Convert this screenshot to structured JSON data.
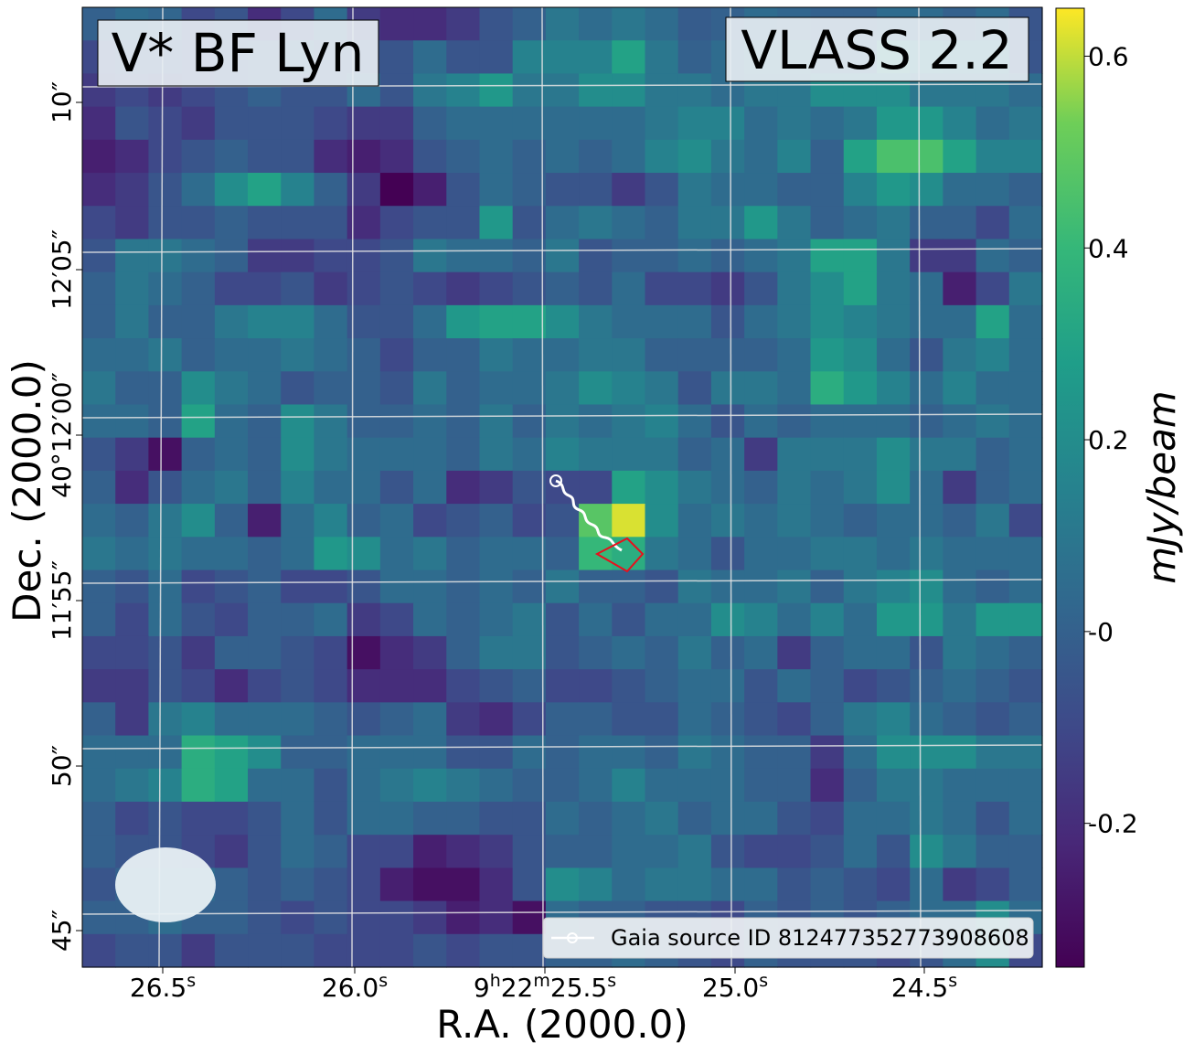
{
  "chart_data": {
    "type": "heatmap",
    "title": "V* BF Lyn",
    "survey_label": "VLASS 2.2",
    "xlabel": "R.A. (2000.0)",
    "ylabel": "Dec. (2000.0)",
    "x_ticks": [
      {
        "pre": "26.5",
        "sup": "s",
        "post": ""
      },
      {
        "pre": "26.0",
        "sup": "s",
        "post": ""
      },
      {
        "pre": "9",
        "sup": "h",
        "post": "22",
        "sup2": "m",
        "post2": "25.5",
        "sup3": "s"
      },
      {
        "pre": "25.0",
        "sup": "s",
        "post": ""
      },
      {
        "pre": "24.5",
        "sup": "s",
        "post": ""
      }
    ],
    "y_ticks": [
      "45″",
      "50″",
      "11′55″",
      "40°12′00″",
      "12′05″",
      "10″"
    ],
    "colorbar": {
      "label": "mJy/beam",
      "colormap": "viridis",
      "range": [
        -0.35,
        0.65
      ],
      "ticks": [
        "0.6",
        "0.4",
        "0.2",
        "-0",
        "-0.2"
      ],
      "tick_values": [
        0.6,
        0.4,
        0.2,
        0.0,
        -0.2
      ]
    },
    "legend": {
      "label": "Gaia source ID 812477352773908608",
      "position": "lower-right"
    },
    "grid": true,
    "pixel_values": [
      [
        0.0,
        0.05,
        0.02,
        -0.1,
        -0.05,
        -0.2,
        -0.1,
        0.05,
        -0.15,
        -0.2,
        -0.2,
        -0.15,
        -0.05,
        0.0,
        0.1,
        0.05,
        0.1,
        0.05,
        -0.02,
        0.0,
        0.05,
        0.02,
        0.0,
        0.0,
        0.05,
        0.05,
        0.0,
        0.05,
        -0.05
      ],
      [
        -0.1,
        -0.05,
        -0.05,
        -0.1,
        -0.05,
        0.0,
        0.05,
        -0.05,
        -0.05,
        -0.05,
        0.05,
        -0.05,
        -0.05,
        0.15,
        0.15,
        0.15,
        0.3,
        0.1,
        0.0,
        0.05,
        0.15,
        0.15,
        0.05,
        0.05,
        0.35,
        0.25,
        0.2,
        0.2,
        -0.05
      ],
      [
        -0.15,
        -0.1,
        -0.15,
        -0.1,
        -0.05,
        0.0,
        -0.05,
        -0.05,
        0.05,
        -0.05,
        0.1,
        0.15,
        0.25,
        0.1,
        0.1,
        0.2,
        0.2,
        0.1,
        0.1,
        0.05,
        0.1,
        0.1,
        0.2,
        0.2,
        0.2,
        0.1,
        0.1,
        0.1,
        0.05
      ],
      [
        -0.2,
        -0.05,
        -0.1,
        -0.15,
        -0.05,
        -0.05,
        -0.05,
        -0.1,
        -0.15,
        -0.15,
        0.0,
        0.05,
        0.05,
        0.05,
        0.05,
        0.05,
        0.05,
        0.1,
        0.15,
        0.15,
        0.05,
        0.1,
        0.05,
        0.1,
        0.25,
        0.25,
        0.15,
        0.05,
        0.1
      ],
      [
        -0.25,
        -0.2,
        -0.1,
        -0.05,
        0.0,
        -0.05,
        -0.05,
        -0.2,
        -0.25,
        -0.2,
        -0.05,
        0.0,
        0.05,
        0.0,
        0.05,
        0.0,
        0.05,
        0.15,
        0.2,
        0.1,
        0.05,
        0.15,
        0.0,
        0.3,
        0.45,
        0.45,
        0.3,
        0.15,
        0.15
      ],
      [
        -0.2,
        -0.15,
        -0.05,
        0.05,
        0.2,
        0.3,
        0.15,
        0.0,
        -0.15,
        -0.35,
        -0.25,
        -0.05,
        0.05,
        0.0,
        -0.05,
        -0.05,
        -0.15,
        -0.05,
        0.1,
        0.05,
        0.05,
        0.0,
        0.0,
        0.15,
        0.25,
        0.2,
        0.05,
        0.05,
        0.0
      ],
      [
        -0.1,
        -0.15,
        -0.05,
        -0.05,
        0.0,
        -0.05,
        -0.05,
        -0.05,
        -0.2,
        -0.1,
        -0.05,
        -0.05,
        0.25,
        -0.05,
        0.05,
        0.1,
        0.05,
        0.0,
        0.1,
        0.1,
        0.25,
        0.1,
        0.0,
        0.05,
        0.1,
        0.0,
        0.0,
        -0.1,
        0.05
      ],
      [
        -0.05,
        0.1,
        0.1,
        0.05,
        0.0,
        -0.15,
        -0.15,
        -0.1,
        -0.1,
        -0.05,
        0.1,
        0.05,
        0.05,
        0.0,
        0.1,
        -0.05,
        0.0,
        0.0,
        0.05,
        0.0,
        0.05,
        0.1,
        0.3,
        0.3,
        0.1,
        -0.15,
        -0.15,
        0.05,
        0.0
      ],
      [
        0.0,
        0.1,
        0.05,
        0.0,
        -0.1,
        -0.1,
        -0.05,
        -0.15,
        -0.1,
        -0.05,
        -0.1,
        -0.15,
        -0.1,
        -0.05,
        0.0,
        -0.05,
        0.05,
        -0.1,
        -0.1,
        -0.15,
        -0.05,
        0.1,
        0.2,
        0.3,
        0.1,
        0.05,
        -0.25,
        -0.1,
        0.1
      ],
      [
        0.0,
        0.1,
        0.0,
        0.0,
        0.1,
        0.15,
        0.15,
        0.05,
        -0.05,
        -0.05,
        0.05,
        0.25,
        0.3,
        0.3,
        0.2,
        0.1,
        0.05,
        0.05,
        0.05,
        -0.05,
        0.05,
        0.1,
        0.2,
        0.15,
        0.1,
        0.05,
        0.05,
        0.3,
        0.05
      ],
      [
        0.05,
        0.05,
        0.1,
        0.0,
        0.05,
        0.05,
        0.1,
        0.05,
        0.0,
        -0.1,
        0.0,
        0.0,
        0.1,
        0.05,
        0.05,
        0.1,
        0.1,
        0.0,
        0.0,
        0.0,
        0.0,
        0.05,
        0.25,
        0.2,
        0.05,
        -0.05,
        0.1,
        0.15,
        0.05
      ],
      [
        0.1,
        0.0,
        0.0,
        0.2,
        0.1,
        0.05,
        -0.05,
        0.0,
        0.0,
        -0.05,
        0.1,
        0.0,
        0.05,
        0.05,
        0.1,
        0.2,
        0.15,
        0.1,
        -0.05,
        0.1,
        0.1,
        0.05,
        0.35,
        0.25,
        0.15,
        0.05,
        0.15,
        0.05,
        0.05
      ],
      [
        0.05,
        0.05,
        0.0,
        0.3,
        0.05,
        0.0,
        0.2,
        0.1,
        0.0,
        0.0,
        0.05,
        0.0,
        0.1,
        0.0,
        0.1,
        0.05,
        0.1,
        0.15,
        0.05,
        -0.05,
        0.05,
        0.0,
        0.05,
        0.05,
        0.05,
        0.0,
        0.05,
        0.1,
        0.05
      ],
      [
        -0.05,
        -0.15,
        -0.3,
        0.0,
        0.05,
        0.0,
        0.2,
        0.1,
        0.05,
        0.05,
        0.05,
        0.0,
        0.1,
        0.05,
        0.15,
        0.1,
        0.1,
        0.1,
        0.0,
        0.05,
        -0.15,
        0.1,
        0.1,
        0.1,
        0.2,
        0.1,
        0.1,
        0.0,
        0.05
      ],
      [
        0.0,
        -0.2,
        -0.05,
        0.05,
        0.1,
        0.0,
        0.15,
        0.05,
        0.05,
        -0.05,
        0.05,
        -0.2,
        -0.15,
        -0.05,
        -0.1,
        -0.1,
        0.3,
        0.2,
        0.1,
        0.05,
        0.0,
        0.1,
        0.05,
        0.1,
        0.2,
        0.05,
        -0.15,
        0.0,
        0.05
      ],
      [
        0.05,
        0.0,
        0.1,
        0.2,
        0.0,
        -0.25,
        0.05,
        0.15,
        0.0,
        0.05,
        -0.1,
        -0.05,
        0.0,
        -0.1,
        -0.05,
        0.48,
        0.62,
        0.2,
        0.05,
        0.1,
        0.05,
        0.1,
        0.05,
        0.0,
        0.05,
        0.05,
        0.0,
        0.1,
        -0.1
      ],
      [
        0.1,
        0.05,
        0.1,
        0.05,
        0.05,
        0.0,
        0.05,
        0.25,
        0.2,
        0.05,
        0.1,
        0.0,
        0.05,
        0.05,
        0.0,
        0.4,
        0.35,
        0.1,
        0.05,
        -0.05,
        0.05,
        0.05,
        0.1,
        0.1,
        0.05,
        0.1,
        0.05,
        0.05,
        0.05
      ],
      [
        0.0,
        -0.05,
        0.05,
        -0.1,
        -0.05,
        0.0,
        -0.1,
        -0.1,
        -0.05,
        0.05,
        0.05,
        0.0,
        0.05,
        0.0,
        0.1,
        0.0,
        0.0,
        -0.05,
        0.1,
        0.05,
        0.05,
        0.1,
        0.0,
        0.1,
        0.15,
        0.2,
        0.05,
        0.0,
        0.05
      ],
      [
        0.0,
        -0.1,
        0.05,
        -0.05,
        -0.1,
        0.0,
        0.0,
        0.05,
        -0.15,
        -0.1,
        0.05,
        0.0,
        0.05,
        0.1,
        -0.05,
        0.05,
        -0.05,
        0.05,
        0.05,
        0.2,
        0.15,
        0.05,
        0.15,
        0.05,
        0.25,
        0.25,
        0.1,
        0.25,
        0.25
      ],
      [
        -0.1,
        -0.1,
        -0.05,
        -0.15,
        0.0,
        0.0,
        -0.05,
        -0.1,
        -0.3,
        -0.2,
        -0.15,
        0.0,
        0.1,
        0.1,
        -0.05,
        0.0,
        0.05,
        0.0,
        0.1,
        0.0,
        0.05,
        -0.15,
        0.0,
        0.05,
        0.05,
        -0.05,
        0.1,
        0.05,
        0.0
      ],
      [
        -0.15,
        -0.15,
        -0.05,
        -0.1,
        -0.2,
        -0.1,
        -0.05,
        -0.1,
        -0.2,
        -0.2,
        -0.2,
        -0.1,
        -0.05,
        0.0,
        -0.1,
        -0.1,
        -0.05,
        0.0,
        0.05,
        0.05,
        -0.05,
        0.05,
        0.0,
        -0.1,
        -0.05,
        0.0,
        0.05,
        0.0,
        -0.05
      ],
      [
        0.0,
        -0.15,
        0.1,
        0.15,
        0.05,
        0.05,
        0.05,
        0.0,
        -0.05,
        0.0,
        0.05,
        -0.15,
        -0.2,
        -0.1,
        0.0,
        0.0,
        -0.05,
        -0.05,
        0.05,
        0.0,
        -0.05,
        -0.1,
        0.0,
        0.1,
        0.15,
        0.05,
        0.0,
        -0.05,
        0.0
      ],
      [
        0.05,
        0.05,
        0.05,
        0.35,
        0.3,
        0.2,
        0.0,
        0.0,
        0.05,
        0.05,
        0.05,
        -0.05,
        -0.05,
        0.05,
        0.0,
        0.05,
        0.05,
        0.0,
        0.1,
        0.05,
        0.0,
        0.0,
        -0.15,
        0.05,
        0.2,
        0.2,
        0.2,
        0.1,
        0.1
      ],
      [
        0.05,
        0.1,
        0.15,
        0.35,
        0.3,
        0.05,
        0.05,
        -0.05,
        0.05,
        0.1,
        0.15,
        0.1,
        0.05,
        0.0,
        0.0,
        0.05,
        0.15,
        0.05,
        0.05,
        0.05,
        0.0,
        0.0,
        -0.2,
        0.0,
        0.1,
        0.1,
        0.05,
        0.05,
        0.05
      ],
      [
        0.0,
        -0.1,
        -0.05,
        -0.1,
        -0.1,
        -0.05,
        0.05,
        -0.05,
        0.05,
        0.05,
        0.0,
        0.0,
        -0.05,
        -0.05,
        0.05,
        0.0,
        0.05,
        0.1,
        0.0,
        0.05,
        0.05,
        -0.05,
        -0.1,
        0.05,
        0.05,
        0.1,
        0.05,
        -0.05,
        0.05
      ],
      [
        0.0,
        -0.05,
        -0.05,
        -0.1,
        -0.15,
        -0.05,
        0.05,
        0.0,
        -0.1,
        -0.1,
        -0.25,
        -0.2,
        -0.15,
        -0.05,
        0.0,
        0.0,
        0.05,
        0.05,
        0.1,
        -0.05,
        -0.1,
        -0.1,
        -0.05,
        0.05,
        -0.05,
        0.2,
        0.1,
        0.0,
        0.0
      ],
      [
        -0.05,
        0.0,
        0.05,
        0.05,
        0.0,
        -0.05,
        0.0,
        -0.05,
        -0.1,
        -0.25,
        -0.3,
        -0.3,
        -0.2,
        -0.05,
        0.2,
        0.15,
        0.05,
        0.1,
        0.1,
        0.05,
        0.05,
        -0.05,
        0.0,
        -0.05,
        -0.1,
        0.05,
        -0.15,
        -0.1,
        0.0
      ],
      [
        0.0,
        0.0,
        0.05,
        0.0,
        0.0,
        -0.05,
        -0.1,
        -0.05,
        -0.1,
        -0.1,
        -0.15,
        -0.25,
        -0.2,
        -0.3,
        0.05,
        0.0,
        0.0,
        -0.05,
        -0.05,
        -0.1,
        0.0,
        -0.05,
        0.0,
        -0.05,
        0.0,
        0.05,
        0.05,
        0.2,
        0.05
      ],
      [
        -0.1,
        -0.05,
        -0.05,
        -0.15,
        -0.05,
        -0.05,
        -0.05,
        -0.1,
        -0.1,
        -0.1,
        -0.05,
        -0.1,
        -0.05,
        -0.05,
        0.0,
        0.0,
        0.05,
        0.0,
        -0.05,
        -0.1,
        0.0,
        -0.05,
        -0.05,
        -0.05,
        -0.1,
        -0.05,
        0.05,
        0.2,
        -0.1
      ]
    ]
  }
}
